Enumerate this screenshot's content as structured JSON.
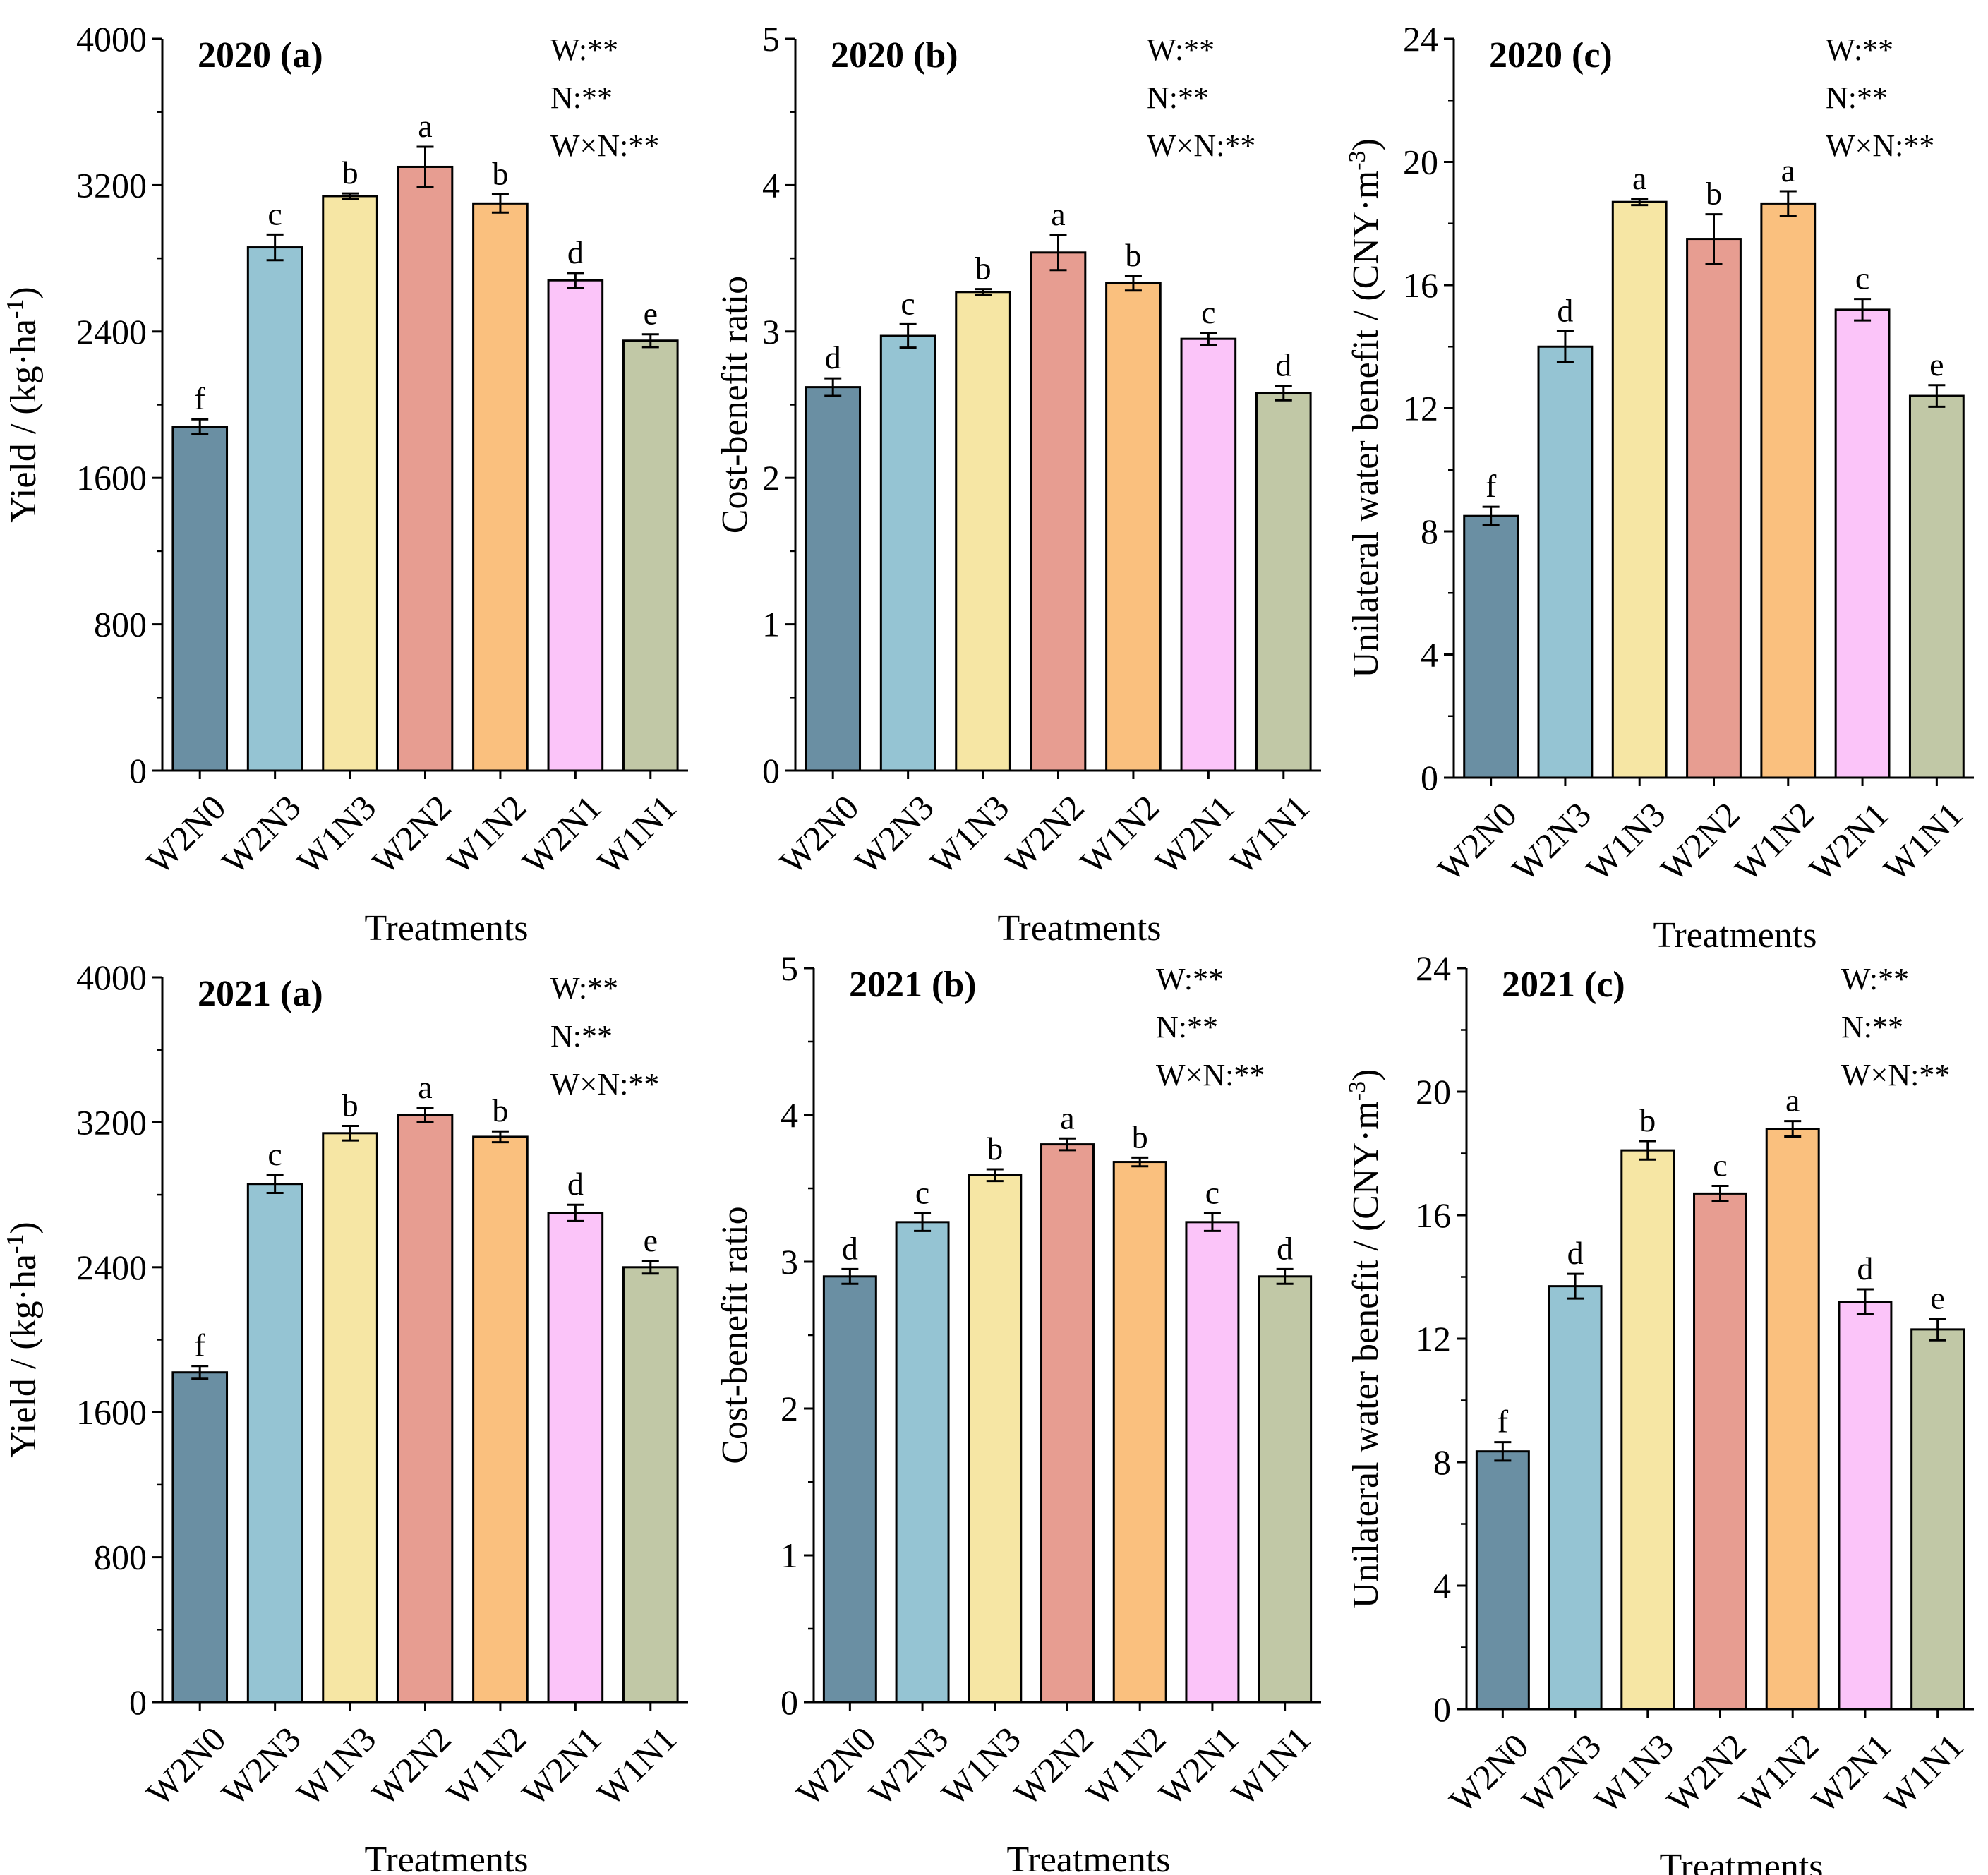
{
  "colors": [
    "#6a8fa3",
    "#95c4d3",
    "#f6e6a4",
    "#e79d91",
    "#fac07e",
    "#fbc4f9",
    "#c1c8a6"
  ],
  "chart_data": [
    {
      "type": "bar",
      "year": "2020",
      "panel": "(a)",
      "categories": [
        "W2N0",
        "W2N3",
        "W1N3",
        "W2N2",
        "W1N2",
        "W2N1",
        "W1N1"
      ],
      "values": [
        1880,
        2860,
        3140,
        3300,
        3100,
        2680,
        2350
      ],
      "errors": [
        40,
        70,
        15,
        110,
        50,
        40,
        35
      ],
      "letters": [
        "f",
        "c",
        "b",
        "a",
        "b",
        "d",
        "e"
      ],
      "xlabel": "Treatments",
      "ylabel_main": "Yield / (kg·ha",
      "ylabel_sup": "-1",
      "ylabel_end": ")",
      "ylim": [
        0,
        4000
      ],
      "ticks": [
        "0",
        "800",
        "1600",
        "2400",
        "3200",
        "4000"
      ],
      "stats": [
        "W:**",
        "N:**",
        "W×N:**"
      ]
    },
    {
      "type": "bar",
      "year": "2020",
      "panel": "(b)",
      "categories": [
        "W2N0",
        "W2N3",
        "W1N3",
        "W2N2",
        "W1N2",
        "W2N1",
        "W1N1"
      ],
      "values": [
        2.62,
        2.97,
        3.27,
        3.54,
        3.33,
        2.95,
        2.58
      ],
      "errors": [
        0.06,
        0.08,
        0.02,
        0.12,
        0.05,
        0.04,
        0.05
      ],
      "letters": [
        "d",
        "c",
        "b",
        "a",
        "b",
        "c",
        "d"
      ],
      "xlabel": "Treatments",
      "ylabel_main": "Cost-benefit ratio",
      "ylabel_sup": "",
      "ylabel_end": "",
      "ylim": [
        0,
        5
      ],
      "ticks": [
        "0",
        "1",
        "2",
        "3",
        "4",
        "5"
      ],
      "stats": [
        "W:**",
        "N:**",
        "W×N:**"
      ]
    },
    {
      "type": "bar",
      "year": "2020",
      "panel": "(c)",
      "categories": [
        "W2N0",
        "W2N3",
        "W1N3",
        "W2N2",
        "W1N2",
        "W2N1",
        "W1N1"
      ],
      "values": [
        8.5,
        14.0,
        18.7,
        17.5,
        18.65,
        15.2,
        12.4
      ],
      "errors": [
        0.3,
        0.5,
        0.1,
        0.8,
        0.4,
        0.35,
        0.35
      ],
      "letters": [
        "f",
        "d",
        "a",
        "b",
        "a",
        "c",
        "e"
      ],
      "xlabel": "Treatments",
      "ylabel_main": "Unilateral water benefit / (CNY·m",
      "ylabel_sup": "-3",
      "ylabel_end": ")",
      "ylim": [
        0,
        24
      ],
      "ticks": [
        "0",
        "4",
        "8",
        "12",
        "16",
        "20",
        "24"
      ],
      "stats": [
        "W:**",
        "N:**",
        "W×N:**"
      ]
    },
    {
      "type": "bar",
      "year": "2021",
      "panel": "(a)",
      "categories": [
        "W2N0",
        "W2N3",
        "W1N3",
        "W2N2",
        "W1N2",
        "W2N1",
        "W1N1"
      ],
      "values": [
        1820,
        2860,
        3140,
        3240,
        3120,
        2700,
        2400
      ],
      "errors": [
        35,
        50,
        40,
        40,
        30,
        45,
        35
      ],
      "letters": [
        "f",
        "c",
        "b",
        "a",
        "b",
        "d",
        "e"
      ],
      "xlabel": "Treatments",
      "ylabel_main": "Yield / (kg·ha",
      "ylabel_sup": "-1",
      "ylabel_end": ")",
      "ylim": [
        0,
        4000
      ],
      "ticks": [
        "0",
        "800",
        "1600",
        "2400",
        "3200",
        "4000"
      ],
      "stats": [
        "W:**",
        "N:**",
        "W×N:**"
      ]
    },
    {
      "type": "bar",
      "year": "2021",
      "panel": "(b)",
      "categories": [
        "W2N0",
        "W2N3",
        "W1N3",
        "W2N2",
        "W1N2",
        "W2N1",
        "W1N1"
      ],
      "values": [
        2.9,
        3.27,
        3.59,
        3.8,
        3.68,
        3.27,
        2.9
      ],
      "errors": [
        0.05,
        0.06,
        0.04,
        0.04,
        0.03,
        0.06,
        0.05
      ],
      "letters": [
        "d",
        "c",
        "b",
        "a",
        "b",
        "c",
        "d"
      ],
      "xlabel": "Treatments",
      "ylabel_main": "Cost-benefit ratio",
      "ylabel_sup": "",
      "ylabel_end": "",
      "ylim": [
        0,
        5
      ],
      "ticks": [
        "0",
        "1",
        "2",
        "3",
        "4",
        "5"
      ],
      "stats": [
        "W:**",
        "N:**",
        "W×N:**"
      ]
    },
    {
      "type": "bar",
      "year": "2021",
      "panel": "(c)",
      "categories": [
        "W2N0",
        "W2N3",
        "W1N3",
        "W2N2",
        "W1N2",
        "W2N1",
        "W1N1"
      ],
      "values": [
        8.35,
        13.7,
        18.1,
        16.7,
        18.8,
        13.2,
        12.3
      ],
      "errors": [
        0.3,
        0.4,
        0.3,
        0.25,
        0.25,
        0.4,
        0.35
      ],
      "letters": [
        "f",
        "d",
        "b",
        "c",
        "a",
        "d",
        "e"
      ],
      "xlabel": "Treatments",
      "ylabel_main": "Unilateral water benefit / (CNY·m",
      "ylabel_sup": "-3",
      "ylabel_end": ")",
      "ylim": [
        0,
        24
      ],
      "ticks": [
        "0",
        "4",
        "8",
        "12",
        "16",
        "20",
        "24"
      ],
      "stats": [
        "W:**",
        "N:**",
        "W×N:**"
      ]
    }
  ]
}
